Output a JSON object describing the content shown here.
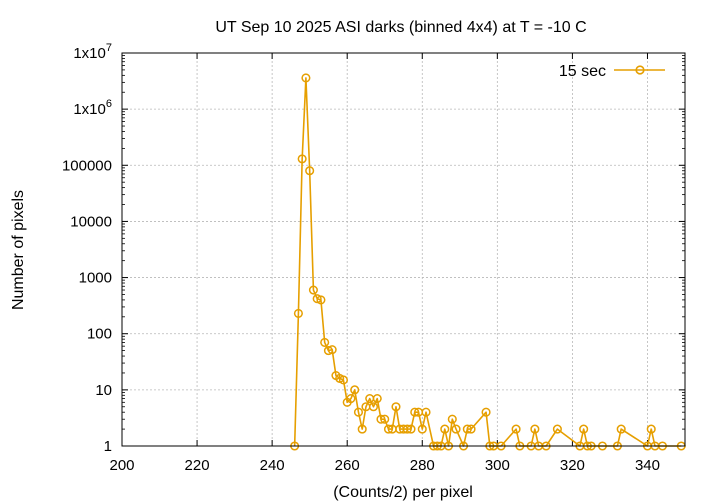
{
  "chart_data": {
    "type": "line",
    "title": "UT Sep 10 2025 ASI darks (binned 4x4) at T = -10 C",
    "xlabel": "(Counts/2) per pixel",
    "ylabel": "Number of pixels",
    "xlim": [
      200,
      350
    ],
    "ylim": [
      1,
      10000000
    ],
    "yscale": "log",
    "grid": true,
    "legend_position": "top-right",
    "x_ticks": [
      200,
      220,
      240,
      260,
      280,
      300,
      320,
      340
    ],
    "x_tick_labels": [
      "200",
      "220",
      "240",
      "260",
      "280",
      "300",
      "320",
      "340"
    ],
    "y_ticks": [
      1,
      10,
      100,
      1000,
      10000,
      100000,
      1000000,
      10000000
    ],
    "y_tick_labels": [
      {
        "base": "1",
        "sup": ""
      },
      {
        "base": "10",
        "sup": ""
      },
      {
        "base": "100",
        "sup": ""
      },
      {
        "base": "1000",
        "sup": ""
      },
      {
        "base": "10000",
        "sup": ""
      },
      {
        "base": "100000",
        "sup": ""
      },
      {
        "base": "1x10",
        "sup": "6"
      },
      {
        "base": "1x10",
        "sup": "7"
      }
    ],
    "series": [
      {
        "name": "15 sec",
        "color": "#e69f00",
        "marker": "circle",
        "points": [
          [
            246,
            1
          ],
          [
            247,
            230
          ],
          [
            248,
            130000
          ],
          [
            249,
            3600000
          ],
          [
            250,
            80000
          ],
          [
            251,
            600
          ],
          [
            252,
            420
          ],
          [
            253,
            400
          ],
          [
            254,
            70
          ],
          [
            255,
            50
          ],
          [
            256,
            52
          ],
          [
            257,
            18
          ],
          [
            258,
            16
          ],
          [
            259,
            15
          ],
          [
            260,
            6
          ],
          [
            261,
            7
          ],
          [
            262,
            10
          ],
          [
            263,
            4
          ],
          [
            264,
            2
          ],
          [
            265,
            5
          ],
          [
            266,
            7
          ],
          [
            267,
            5
          ],
          [
            268,
            7
          ],
          [
            269,
            3
          ],
          [
            270,
            3
          ],
          [
            271,
            2
          ],
          [
            272,
            2
          ],
          [
            273,
            5
          ],
          [
            274,
            2
          ],
          [
            275,
            2
          ],
          [
            276,
            2
          ],
          [
            277,
            2
          ],
          [
            278,
            4
          ],
          [
            279,
            4
          ],
          [
            280,
            2
          ],
          [
            281,
            4
          ],
          [
            283,
            1
          ],
          [
            284,
            1
          ],
          [
            285,
            1
          ],
          [
            286,
            2
          ],
          [
            287,
            1
          ],
          [
            288,
            3
          ],
          [
            289,
            2
          ],
          [
            291,
            1
          ],
          [
            292,
            2
          ],
          [
            293,
            2
          ],
          [
            297,
            4
          ],
          [
            298,
            1
          ],
          [
            299,
            1
          ],
          [
            301,
            1
          ],
          [
            305,
            2
          ],
          [
            306,
            1
          ],
          [
            309,
            1
          ],
          [
            310,
            2
          ],
          [
            311,
            1
          ],
          [
            313,
            1
          ],
          [
            316,
            2
          ],
          [
            322,
            1
          ],
          [
            323,
            2
          ],
          [
            324,
            1
          ],
          [
            325,
            1
          ],
          [
            328,
            1
          ],
          [
            332,
            1
          ],
          [
            333,
            2
          ],
          [
            340,
            1
          ],
          [
            341,
            2
          ],
          [
            342,
            1
          ],
          [
            344,
            1
          ],
          [
            349,
            1
          ]
        ]
      }
    ]
  }
}
